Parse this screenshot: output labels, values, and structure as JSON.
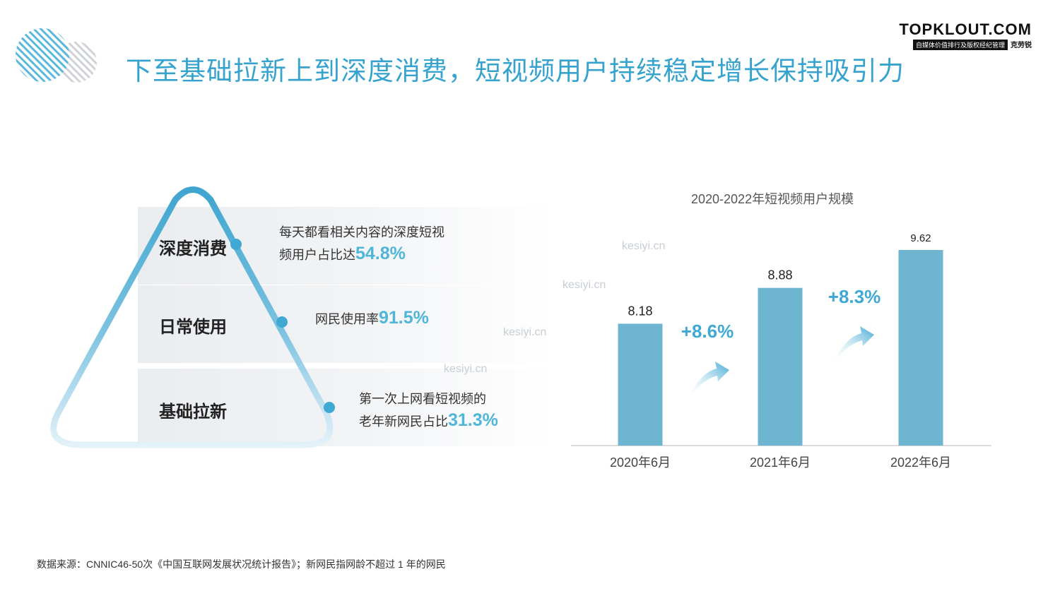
{
  "header": {
    "title": "下至基础拉新上到深度消费，短视频用户持续稳定增长保持吸引力",
    "brand_name": "TOPKLOUT.COM",
    "brand_sub": "自媒体价值排行及版权经纪管理",
    "brand_cn": "克劳锐"
  },
  "pyramid": {
    "tiers": [
      {
        "label": "深度消费",
        "desc_line1": "每天都看相关内容的深度短视",
        "desc_line2": "频用户占比达",
        "value": "54.8%"
      },
      {
        "label": "日常使用",
        "desc_line1": "网民使用率",
        "value": "91.5%"
      },
      {
        "label": "基础拉新",
        "desc_line1": "第一次上网看短视频的",
        "desc_line2": "老年新网民占比",
        "value": "31.3%"
      }
    ]
  },
  "watermark": "kesiyi.cn",
  "chart_data": {
    "type": "bar",
    "title": "2020-2022年短视频用户规模",
    "categories": [
      "2020年6月",
      "2021年6月",
      "2022年6月"
    ],
    "values": [
      8.18,
      8.88,
      9.62
    ],
    "value_labels": [
      "8.18",
      "8.88",
      "9.62"
    ],
    "growth_labels": [
      "+8.6%",
      "+8.3%"
    ],
    "ylim": [
      5.8,
      9.9
    ],
    "bar_color": "#6db5d0",
    "accent_color": "#3fa9d4"
  },
  "footer": {
    "source": "数据来源：CNNIC46-50次《中国互联网发展状况统计报告》；新网民指网龄不超过 1 年的网民"
  }
}
